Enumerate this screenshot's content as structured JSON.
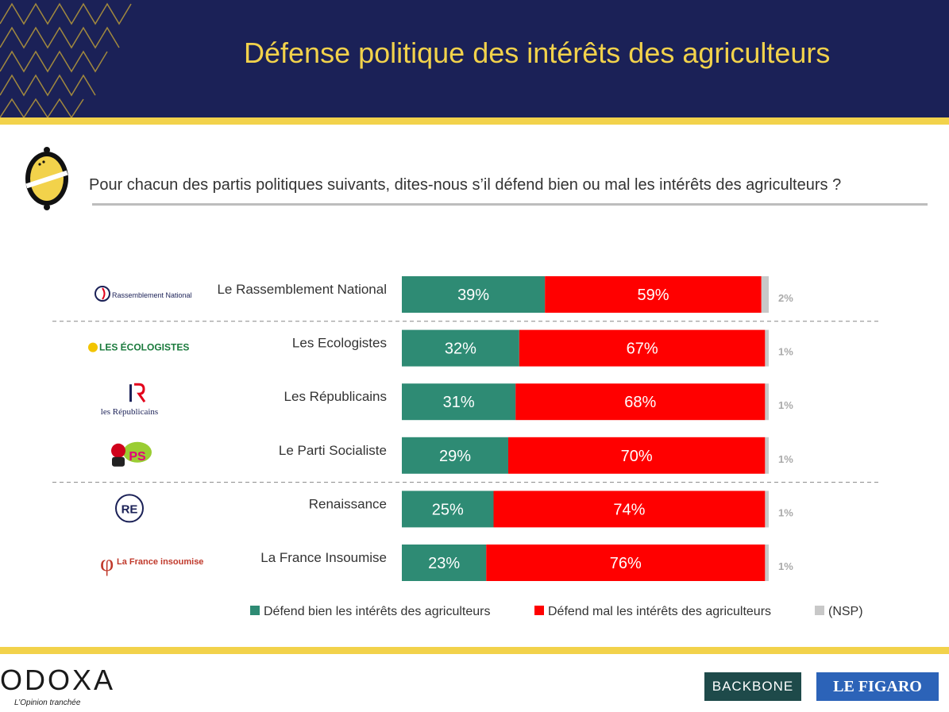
{
  "header": {
    "title": "Défense politique des intérêts des agriculteurs"
  },
  "question": "Pour chacun des partis politiques suivants, dites-nous s’il défend bien ou mal les intérêts des agriculteurs ?",
  "colors": {
    "navy": "#1b2157",
    "yellow": "#f2d24b",
    "bien": "#2e8b74",
    "mal": "#ff0000",
    "nsp": "#c8c8c8"
  },
  "chart_data": {
    "type": "bar",
    "orientation": "horizontal-stacked",
    "unit": "%",
    "categories": [
      "Le Rassemblement National",
      "Les Ecologistes",
      "Les Républicains",
      "Le Parti Socialiste",
      "Renaissance",
      "La France Insoumise"
    ],
    "series": [
      {
        "name": "Défend bien les intérêts des agriculteurs",
        "color": "#2e8b74",
        "values": [
          39,
          32,
          31,
          29,
          25,
          23
        ]
      },
      {
        "name": "Défend mal les intérêts des agriculteurs",
        "color": "#ff0000",
        "values": [
          59,
          67,
          68,
          70,
          74,
          76
        ]
      },
      {
        "name": "(NSP)",
        "color": "#c8c8c8",
        "values": [
          2,
          1,
          1,
          1,
          1,
          1
        ]
      }
    ],
    "labels": {
      "bien": [
        "39%",
        "32%",
        "31%",
        "29%",
        "25%",
        "23%"
      ],
      "mal": [
        "59%",
        "67%",
        "68%",
        "70%",
        "74%",
        "76%"
      ],
      "nsp": [
        "2%",
        "1%",
        "1%",
        "1%",
        "1%",
        "1%"
      ]
    },
    "logos": [
      {
        "text": "Rassemblement National",
        "icon": "rn-flame-icon"
      },
      {
        "text": "LES ÉCOLOGISTES",
        "icon": "ecologistes-sunflower-icon"
      },
      {
        "text": "les Républicains",
        "icon": "lr-logo-icon"
      },
      {
        "text": "PS",
        "icon": "ps-rose-icon"
      },
      {
        "text": "RE",
        "icon": "renaissance-logo-icon"
      },
      {
        "text": "La France insoumise",
        "icon": "lfi-phi-icon"
      }
    ],
    "legend_position": "bottom",
    "xlim": [
      0,
      100
    ]
  },
  "footer": {
    "odoxa": "ODOXA",
    "tagline": "L’Opinion tranchée",
    "backbone": "BACKBONE",
    "figaro": "LE FIGARO"
  }
}
